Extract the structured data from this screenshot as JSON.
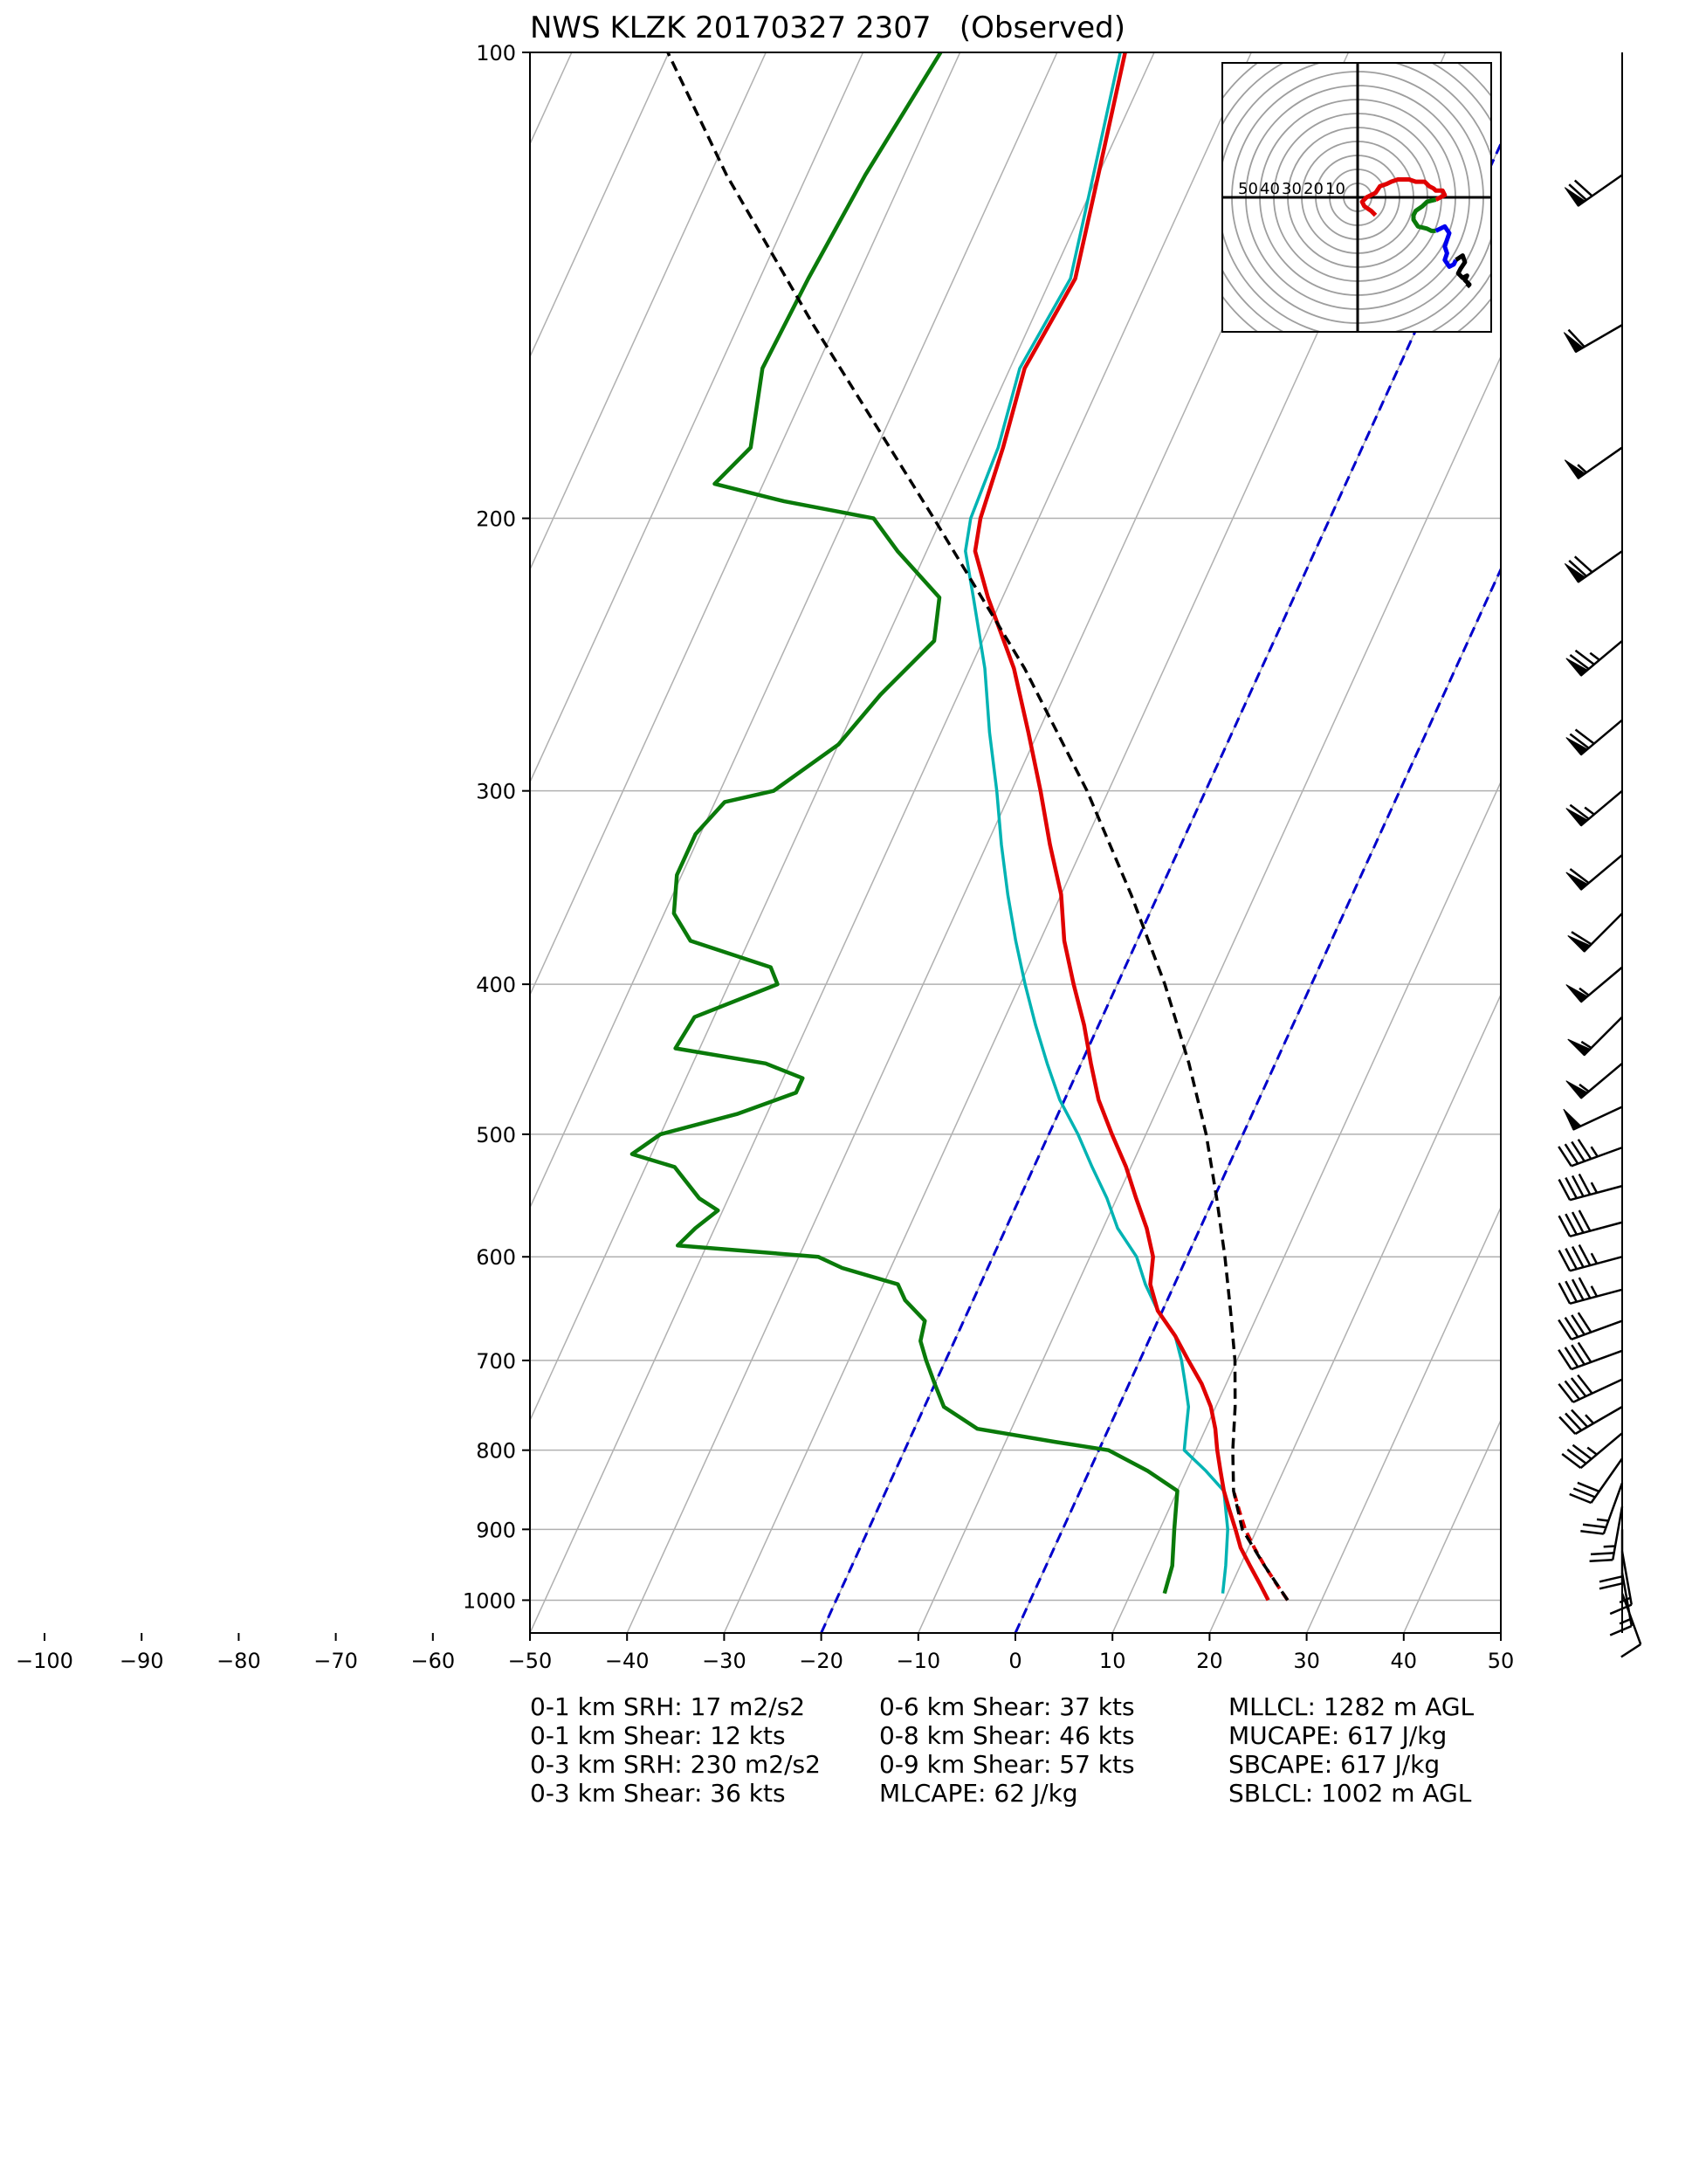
{
  "title": "NWS KLZK 20170327 2307   (Observed)",
  "colors": {
    "temperature": "#e00000",
    "dewpoint": "#0a7a0a",
    "virtual_temperature": "#00b3b3",
    "parcel": "#000000",
    "isotherm_dashed": "#0000cc",
    "hodo_0_3km": "#e00000",
    "hodo_3_6km": "#0a7a0a",
    "hodo_6_9km": "#0000ee",
    "hodo_9_12km": "#000000",
    "grid": "#b0b0b0"
  },
  "chart_data": [
    {
      "type": "line",
      "subtype": "skew-t log-p",
      "xlabel": "",
      "ylabel": "",
      "xlim": [
        -50,
        50
      ],
      "ylim": [
        1050,
        100
      ],
      "y_scale": "log",
      "x_ticks": [
        -100,
        -90,
        -80,
        -70,
        -60,
        -50,
        -40,
        -30,
        -20,
        -10,
        0,
        10,
        20,
        30,
        40,
        50
      ],
      "y_ticks": [
        100,
        200,
        300,
        400,
        500,
        600,
        700,
        800,
        900,
        1000
      ],
      "grid": true,
      "series": [
        {
          "key": "temperature",
          "p": [
            1000,
            975,
            950,
            925,
            900,
            875,
            850,
            825,
            800,
            775,
            750,
            725,
            700,
            675,
            650,
            625,
            600,
            575,
            550,
            525,
            500,
            475,
            450,
            425,
            400,
            375,
            350,
            325,
            300,
            275,
            250,
            225,
            210,
            200,
            180,
            160,
            140,
            120,
            100
          ],
          "t": [
            24.5,
            22.8,
            21.0,
            19.2,
            17.8,
            16.3,
            14.8,
            13.5,
            12.2,
            11.0,
            9.5,
            7.5,
            5.0,
            2.5,
            -0.5,
            -2.5,
            -3.5,
            -5.5,
            -8.0,
            -10.5,
            -13.5,
            -16.5,
            -19.0,
            -21.5,
            -24.5,
            -27.5,
            -30.0,
            -33.5,
            -37.0,
            -41.0,
            -45.5,
            -51.5,
            -55.0,
            -56.0,
            -57.0,
            -58.5,
            -57.5,
            -60.0,
            -63.0
          ]
        },
        {
          "key": "parcel_dashed",
          "p": [
            1000,
            975,
            950,
            925,
            900,
            875,
            850
          ],
          "t": [
            26.5,
            24.5,
            22.5,
            20.6,
            18.8,
            17.3,
            15.8
          ]
        },
        {
          "key": "virtual_temperature",
          "p": [
            990,
            950,
            900,
            850,
            825,
            800,
            775,
            750,
            725,
            700,
            675,
            650,
            625,
            600,
            575,
            550,
            525,
            500,
            475,
            450,
            425,
            400,
            375,
            350,
            325,
            300,
            275,
            250,
            225,
            210,
            200,
            180,
            160,
            140,
            120,
            100
          ],
          "t": [
            19.5,
            18.5,
            17.0,
            14.8,
            12.0,
            8.8,
            8.0,
            7.2,
            5.8,
            4.3,
            2.5,
            -0.5,
            -3.0,
            -5.2,
            -8.5,
            -11.0,
            -14.0,
            -17.0,
            -20.5,
            -23.5,
            -26.5,
            -29.5,
            -32.5,
            -35.5,
            -38.5,
            -41.5,
            -45.0,
            -48.5,
            -53.0,
            -56.0,
            -57.0,
            -57.5,
            -59.0,
            -58.0,
            -60.5,
            -63.5
          ]
        },
        {
          "key": "dewpoint",
          "p": [
            990,
            950,
            900,
            850,
            825,
            800,
            790,
            775,
            750,
            725,
            700,
            680,
            660,
            640,
            625,
            610,
            600,
            590,
            575,
            560,
            550,
            525,
            515,
            500,
            485,
            470,
            460,
            450,
            440,
            420,
            400,
            390,
            375,
            360,
            340,
            320,
            305,
            300,
            280,
            260,
            240,
            225,
            210,
            200,
            195,
            190,
            180,
            160,
            140,
            120,
            100
          ],
          "t": [
            13.5,
            13.0,
            11.5,
            10.0,
            6.0,
            1.0,
            -5.0,
            -13.5,
            -18.0,
            -20.0,
            -22.0,
            -23.5,
            -24.0,
            -27.0,
            -28.5,
            -35.0,
            -38.0,
            -53.0,
            -52.0,
            -50.5,
            -53.0,
            -57.0,
            -62.0,
            -60.0,
            -53.0,
            -48.0,
            -48.0,
            -52.5,
            -62.5,
            -62.0,
            -55.0,
            -56.5,
            -66.0,
            -69.0,
            -70.5,
            -70.5,
            -69.0,
            -64.5,
            -60.0,
            -58.0,
            -55.0,
            -56.5,
            -63.0,
            -67.0,
            -77.0,
            -85.0,
            -83.0,
            -85.5,
            -85.0,
            -84.0,
            -82.0
          ]
        },
        {
          "key": "parcel",
          "p": [
            1000,
            950,
            900,
            850,
            800,
            750,
            700,
            650,
            600,
            550,
            500,
            450,
            400,
            350,
            300,
            250,
            200,
            150,
            120,
            100
          ],
          "t": [
            26.5,
            22.5,
            18.5,
            15.8,
            13.8,
            12.0,
            9.8,
            7.0,
            3.9,
            0.3,
            -3.8,
            -8.9,
            -15.1,
            -22.8,
            -32.2,
            -44.4,
            -60.8,
            -82.3,
            -98.3,
            -110.1
          ]
        }
      ],
      "dashed_isotherms": [
        -20,
        0
      ]
    },
    {
      "type": "line",
      "subtype": "hodograph",
      "ring_labels": [
        "50",
        "40",
        "30",
        "20",
        "10"
      ],
      "units": "kts",
      "series": [
        {
          "key": "hodo_0_3km",
          "u": [
            8,
            6,
            3,
            2,
            4,
            8,
            10,
            13,
            15,
            18,
            23,
            26,
            30,
            32,
            34,
            35,
            38,
            39,
            37,
            35
          ],
          "v": [
            -8,
            -6,
            -4,
            -2,
            0,
            2,
            5,
            6,
            7,
            8,
            8,
            7,
            7,
            5,
            4,
            3,
            3,
            1,
            0,
            -1
          ]
        },
        {
          "key": "hodo_3_6km",
          "u": [
            35,
            31,
            29,
            26,
            25,
            25,
            27,
            31,
            33,
            35
          ],
          "v": [
            -1,
            -2,
            -4,
            -6,
            -8,
            -10,
            -13,
            -14,
            -15,
            -15
          ]
        },
        {
          "key": "hodo_6_9km",
          "u": [
            35,
            39,
            41,
            40,
            39,
            40,
            39,
            41,
            43,
            44
          ],
          "v": [
            -15,
            -13,
            -16,
            -19,
            -22,
            -25,
            -28,
            -31,
            -30,
            -28
          ]
        },
        {
          "key": "hodo_9_12km",
          "u": [
            44,
            47,
            48,
            46,
            45,
            47,
            49,
            48,
            50,
            49
          ],
          "v": [
            -28,
            -26,
            -29,
            -32,
            -34,
            -36,
            -35,
            -37,
            -39,
            -40
          ]
        }
      ]
    },
    {
      "type": "wind_barbs",
      "units": "kts",
      "p": [
        120,
        150,
        180,
        210,
        240,
        270,
        300,
        330,
        360,
        390,
        420,
        450,
        480,
        510,
        540,
        570,
        600,
        630,
        660,
        690,
        720,
        750,
        780,
        810,
        840,
        870,
        900,
        930,
        960,
        990
      ],
      "dir": [
        235,
        240,
        235,
        235,
        230,
        230,
        230,
        230,
        225,
        230,
        225,
        230,
        245,
        250,
        255,
        255,
        255,
        255,
        250,
        250,
        245,
        240,
        230,
        215,
        200,
        190,
        180,
        170,
        170,
        160
      ],
      "spd": [
        70,
        60,
        55,
        70,
        75,
        70,
        65,
        60,
        60,
        55,
        55,
        55,
        50,
        45,
        45,
        40,
        45,
        45,
        40,
        40,
        40,
        35,
        35,
        30,
        25,
        25,
        20,
        15,
        15,
        10
      ]
    }
  ],
  "stats": {
    "col1": [
      "0-1 km SRH: 17 m2/s2",
      "0-1 km Shear: 12 kts",
      "0-3 km SRH: 230 m2/s2",
      "0-3 km Shear: 36 kts"
    ],
    "col2": [
      "0-6 km Shear: 37 kts",
      "0-8 km Shear: 46 kts",
      "0-9 km Shear: 57 kts",
      "MLCAPE: 62 J/kg"
    ],
    "col3": [
      "MLLCL: 1282 m AGL",
      "MUCAPE: 617 J/kg",
      "SBCAPE: 617 J/kg",
      "SBLCL: 1002 m AGL"
    ]
  }
}
